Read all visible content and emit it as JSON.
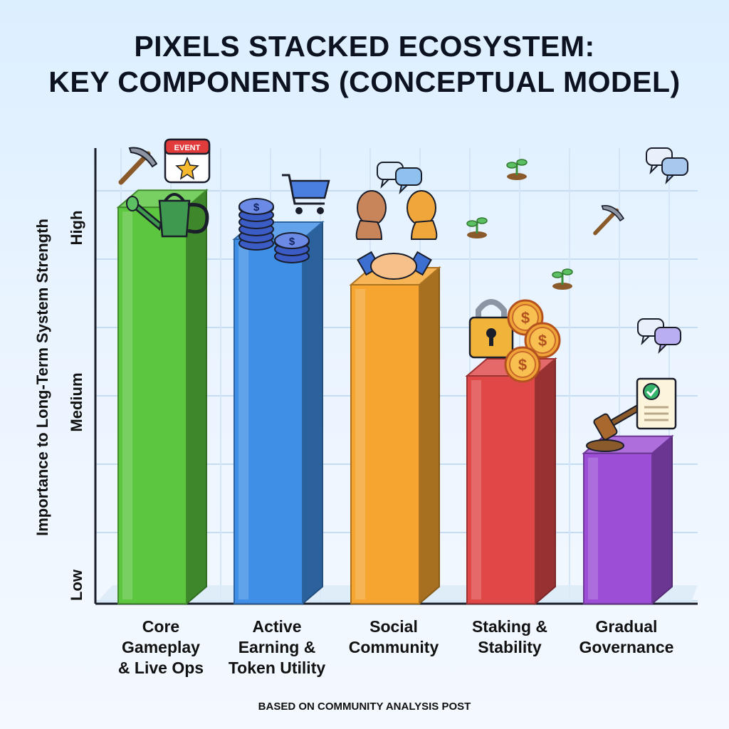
{
  "chart_data": {
    "type": "bar",
    "title_lines": [
      "PIXELS STACKED ECOSYSTEM:",
      "KEY COMPONENTS (CONCEPTUAL MODEL)"
    ],
    "ylabel": "Importance to Long-Term System Strength",
    "yticks": [
      "Low",
      "Medium",
      "High"
    ],
    "ylim": [
      0,
      10
    ],
    "grid": true,
    "categories": [
      "Core\nGameplay\n& Live Ops",
      "Active\nEarning &\nToken Utility",
      "Social\nCommunity",
      "Staking &\nStability",
      "Gradual\nGovernance"
    ],
    "values": [
      8.7,
      8.0,
      7.0,
      5.0,
      3.3
    ],
    "colors": [
      "#5cc63f",
      "#3f8fe6",
      "#f5a530",
      "#e04848",
      "#9c4fd6"
    ],
    "icons": [
      [
        "pickaxe-icon",
        "calendar-event-icon",
        "watering-can-icon"
      ],
      [
        "coin-stack-icon",
        "shopping-cart-icon"
      ],
      [
        "chat-bubble-icon",
        "people-icon",
        "handshake-icon"
      ],
      [
        "padlock-icon",
        "dollar-coin-icon"
      ],
      [
        "gavel-icon",
        "document-check-icon"
      ]
    ],
    "calendar_label": "EVENT"
  },
  "footer": "BASED ON COMMUNITY ANALYSIS POST"
}
